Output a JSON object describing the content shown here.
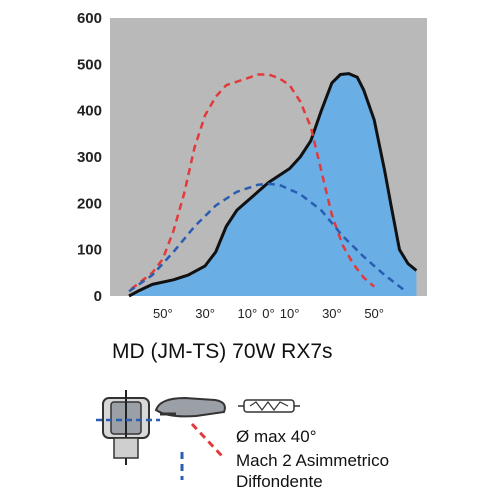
{
  "chart_data": {
    "type": "line",
    "xlabel": "",
    "ylabel": "",
    "ylim": [
      0,
      600
    ],
    "xlim": [
      -75,
      75
    ],
    "x_axis": "angle (degrees), signed; tick labels printed unsigned",
    "yticks": [
      0,
      100,
      200,
      300,
      400,
      500,
      600
    ],
    "xticks": [
      {
        "value": -50,
        "label": "50°"
      },
      {
        "value": -30,
        "label": "30°"
      },
      {
        "value": -10,
        "label": "10°"
      },
      {
        "value": 0,
        "label": "0°"
      },
      {
        "value": 10,
        "label": "10°"
      },
      {
        "value": 30,
        "label": "30°"
      },
      {
        "value": 50,
        "label": "50°"
      }
    ],
    "grid": false,
    "series": [
      {
        "style": "filled-area-black-outline",
        "color": "#6aaee6",
        "points": [
          [
            -66,
            0
          ],
          [
            -62,
            10
          ],
          [
            -55,
            25
          ],
          [
            -45,
            35
          ],
          [
            -38,
            45
          ],
          [
            -30,
            65
          ],
          [
            -25,
            95
          ],
          [
            -20,
            150
          ],
          [
            -15,
            185
          ],
          [
            -10,
            205
          ],
          [
            -5,
            225
          ],
          [
            0,
            245
          ],
          [
            5,
            260
          ],
          [
            10,
            275
          ],
          [
            15,
            300
          ],
          [
            20,
            335
          ],
          [
            25,
            400
          ],
          [
            30,
            460
          ],
          [
            34,
            478
          ],
          [
            38,
            480
          ],
          [
            42,
            472
          ],
          [
            45,
            445
          ],
          [
            50,
            380
          ],
          [
            55,
            270
          ],
          [
            58,
            195
          ],
          [
            62,
            100
          ],
          [
            66,
            70
          ],
          [
            70,
            55
          ]
        ]
      },
      {
        "style": "dashed",
        "color": "#e23a3a",
        "points": [
          [
            -65,
            15
          ],
          [
            -55,
            50
          ],
          [
            -50,
            80
          ],
          [
            -45,
            140
          ],
          [
            -40,
            220
          ],
          [
            -35,
            320
          ],
          [
            -30,
            390
          ],
          [
            -25,
            430
          ],
          [
            -20,
            455
          ],
          [
            -10,
            470
          ],
          [
            -5,
            478
          ],
          [
            0,
            478
          ],
          [
            5,
            470
          ],
          [
            10,
            455
          ],
          [
            15,
            420
          ],
          [
            20,
            365
          ],
          [
            25,
            270
          ],
          [
            30,
            175
          ],
          [
            35,
            110
          ],
          [
            40,
            70
          ],
          [
            45,
            40
          ],
          [
            50,
            20
          ]
        ]
      },
      {
        "style": "dashed",
        "color": "#2a5db0",
        "points": [
          [
            -66,
            10
          ],
          [
            -55,
            45
          ],
          [
            -45,
            95
          ],
          [
            -35,
            150
          ],
          [
            -25,
            195
          ],
          [
            -15,
            225
          ],
          [
            -5,
            240
          ],
          [
            0,
            242
          ],
          [
            5,
            240
          ],
          [
            15,
            220
          ],
          [
            25,
            185
          ],
          [
            35,
            130
          ],
          [
            45,
            85
          ],
          [
            55,
            45
          ],
          [
            65,
            10
          ]
        ]
      }
    ]
  },
  "model_title": "MD (JM-TS) 70W RX7s",
  "legend": {
    "red_dash_label": "Ø max 40°",
    "blue_dash_label1": "Mach 2 Asimmetrico",
    "blue_dash_label2": "Diffondente",
    "colors": {
      "red": "#e23a3a",
      "blue": "#2a5db0",
      "fill": "#6aaee6",
      "plot_bg": "#b9b9b9"
    }
  }
}
